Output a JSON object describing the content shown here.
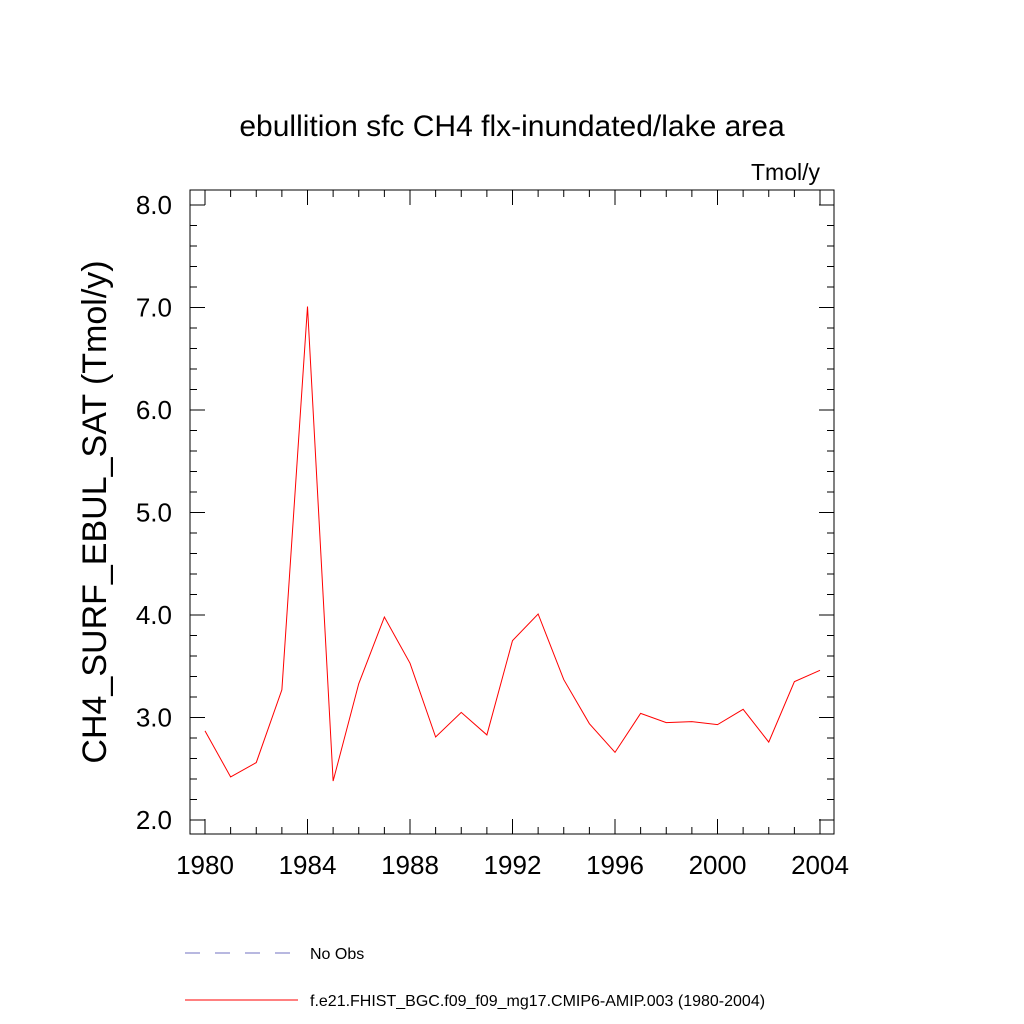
{
  "chart_data": {
    "type": "line",
    "title": "ebullition sfc CH4 flx-inundated/lake area",
    "units_label": "Tmol/y",
    "ylabel": "CH4_SURF_EBUL_SAT  (Tmol/y)",
    "xlabel": "",
    "xlim": [
      1980,
      2004
    ],
    "ylim": [
      2.0,
      8.0
    ],
    "x_ticks": [
      1980,
      1984,
      1988,
      1992,
      1996,
      2000,
      2004
    ],
    "x_tick_labels": [
      "1980",
      "1984",
      "1988",
      "1992",
      "1996",
      "2000",
      "2004"
    ],
    "y_ticks": [
      2.0,
      3.0,
      4.0,
      5.0,
      6.0,
      7.0,
      8.0
    ],
    "y_tick_labels": [
      "2.0",
      "3.0",
      "4.0",
      "5.0",
      "6.0",
      "7.0",
      "8.0"
    ],
    "x_minor_step": 1,
    "y_minor_step": 0.2,
    "grid": false,
    "legend_position": "bottom",
    "x": [
      1980,
      1981,
      1982,
      1983,
      1984,
      1985,
      1986,
      1987,
      1988,
      1989,
      1990,
      1991,
      1992,
      1993,
      1994,
      1995,
      1996,
      1997,
      1998,
      1999,
      2000,
      2001,
      2002,
      2003,
      2004
    ],
    "series": [
      {
        "name": "f.e21.FHIST_BGC.f09_f09_mg17.CMIP6-AMIP.003 (1980-2004)",
        "color": "#ff0000",
        "style": "solid",
        "values": [
          2.87,
          2.42,
          2.56,
          3.27,
          7.01,
          2.38,
          3.33,
          3.98,
          3.53,
          2.81,
          3.05,
          2.83,
          3.75,
          4.01,
          3.37,
          2.94,
          2.66,
          3.04,
          2.95,
          2.96,
          2.93,
          3.08,
          2.76,
          3.35,
          3.46
        ]
      }
    ],
    "legend": [
      {
        "label": "No Obs",
        "color": "#7070c0",
        "style": "dashed"
      },
      {
        "label": "f.e21.FHIST_BGC.f09_f09_mg17.CMIP6-AMIP.003 (1980-2004)",
        "color": "#ff0000",
        "style": "solid"
      }
    ]
  }
}
